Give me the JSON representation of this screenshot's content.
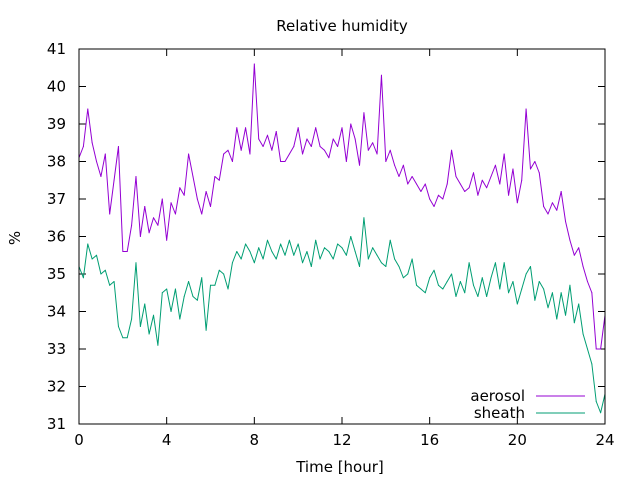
{
  "chart_data": {
    "type": "line",
    "title": "Relative humidity",
    "xlabel": "Time [hour]",
    "ylabel": "%",
    "xlim": [
      0,
      24
    ],
    "ylim": [
      31,
      41
    ],
    "xticks": [
      0,
      4,
      8,
      12,
      16,
      20,
      24
    ],
    "yticks": [
      31,
      32,
      33,
      34,
      35,
      36,
      37,
      38,
      39,
      40,
      41
    ],
    "grid": false,
    "legend_position": "bottom-right",
    "series": [
      {
        "name": "aerosol",
        "color": "#9400d3",
        "x": [
          0,
          0.2,
          0.4,
          0.6,
          0.8,
          1.0,
          1.2,
          1.4,
          1.6,
          1.8,
          2.0,
          2.2,
          2.4,
          2.6,
          2.8,
          3.0,
          3.2,
          3.4,
          3.6,
          3.8,
          4.0,
          4.2,
          4.4,
          4.6,
          4.8,
          5.0,
          5.2,
          5.4,
          5.6,
          5.8,
          6.0,
          6.2,
          6.4,
          6.6,
          6.8,
          7.0,
          7.2,
          7.4,
          7.6,
          7.8,
          8.0,
          8.2,
          8.4,
          8.6,
          8.8,
          9.0,
          9.2,
          9.4,
          9.6,
          9.8,
          10.0,
          10.2,
          10.4,
          10.6,
          10.8,
          11.0,
          11.2,
          11.4,
          11.6,
          11.8,
          12.0,
          12.2,
          12.4,
          12.6,
          12.8,
          13.0,
          13.2,
          13.4,
          13.6,
          13.8,
          14.0,
          14.2,
          14.4,
          14.6,
          14.8,
          15.0,
          15.2,
          15.4,
          15.6,
          15.8,
          16.0,
          16.2,
          16.4,
          16.6,
          16.8,
          17.0,
          17.2,
          17.4,
          17.6,
          17.8,
          18.0,
          18.2,
          18.4,
          18.6,
          18.8,
          19.0,
          19.2,
          19.4,
          19.6,
          19.8,
          20.0,
          20.2,
          20.4,
          20.6,
          20.8,
          21.0,
          21.2,
          21.4,
          21.6,
          21.8,
          22.0,
          22.2,
          22.4,
          22.6,
          22.8,
          23.0,
          23.2,
          23.4,
          23.6,
          23.8,
          24.0
        ],
        "values": [
          38.1,
          38.4,
          39.4,
          38.5,
          38.0,
          37.6,
          38.2,
          36.6,
          37.5,
          38.4,
          35.6,
          35.6,
          36.3,
          37.6,
          36.0,
          36.8,
          36.1,
          36.5,
          36.3,
          37.0,
          35.9,
          36.9,
          36.6,
          37.3,
          37.1,
          38.2,
          37.6,
          37.0,
          36.6,
          37.2,
          36.8,
          37.6,
          37.5,
          38.2,
          38.3,
          38.0,
          38.9,
          38.3,
          38.9,
          38.2,
          40.6,
          38.6,
          38.4,
          38.7,
          38.3,
          38.8,
          38.0,
          38.0,
          38.2,
          38.4,
          38.9,
          38.2,
          38.6,
          38.4,
          38.9,
          38.4,
          38.3,
          38.1,
          38.6,
          38.4,
          38.9,
          38.0,
          39.0,
          38.6,
          37.9,
          39.3,
          38.3,
          38.5,
          38.2,
          40.3,
          38.0,
          38.3,
          37.9,
          37.6,
          37.9,
          37.4,
          37.6,
          37.4,
          37.2,
          37.4,
          37.0,
          36.8,
          37.1,
          37.0,
          37.4,
          38.3,
          37.6,
          37.4,
          37.2,
          37.3,
          37.7,
          37.1,
          37.5,
          37.3,
          37.6,
          37.9,
          37.4,
          38.2,
          37.1,
          37.8,
          36.9,
          37.5,
          39.4,
          37.8,
          38.0,
          37.7,
          36.8,
          36.6,
          36.9,
          36.7,
          37.2,
          36.4,
          35.9,
          35.5,
          35.7,
          35.2,
          34.8,
          34.5,
          33.0,
          33.0,
          33.9
        ]
      },
      {
        "name": "sheath",
        "color": "#009e73",
        "x": [
          0,
          0.2,
          0.4,
          0.6,
          0.8,
          1.0,
          1.2,
          1.4,
          1.6,
          1.8,
          2.0,
          2.2,
          2.4,
          2.6,
          2.8,
          3.0,
          3.2,
          3.4,
          3.6,
          3.8,
          4.0,
          4.2,
          4.4,
          4.6,
          4.8,
          5.0,
          5.2,
          5.4,
          5.6,
          5.8,
          6.0,
          6.2,
          6.4,
          6.6,
          6.8,
          7.0,
          7.2,
          7.4,
          7.6,
          7.8,
          8.0,
          8.2,
          8.4,
          8.6,
          8.8,
          9.0,
          9.2,
          9.4,
          9.6,
          9.8,
          10.0,
          10.2,
          10.4,
          10.6,
          10.8,
          11.0,
          11.2,
          11.4,
          11.6,
          11.8,
          12.0,
          12.2,
          12.4,
          12.6,
          12.8,
          13.0,
          13.2,
          13.4,
          13.6,
          13.8,
          14.0,
          14.2,
          14.4,
          14.6,
          14.8,
          15.0,
          15.2,
          15.4,
          15.6,
          15.8,
          16.0,
          16.2,
          16.4,
          16.6,
          16.8,
          17.0,
          17.2,
          17.4,
          17.6,
          17.8,
          18.0,
          18.2,
          18.4,
          18.6,
          18.8,
          19.0,
          19.2,
          19.4,
          19.6,
          19.8,
          20.0,
          20.2,
          20.4,
          20.6,
          20.8,
          21.0,
          21.2,
          21.4,
          21.6,
          21.8,
          22.0,
          22.2,
          22.4,
          22.6,
          22.8,
          23.0,
          23.2,
          23.4,
          23.6,
          23.8,
          24.0
        ],
        "values": [
          35.2,
          34.9,
          35.8,
          35.4,
          35.5,
          35.0,
          35.1,
          34.7,
          34.8,
          33.6,
          33.3,
          33.3,
          33.8,
          35.3,
          33.6,
          34.2,
          33.4,
          33.9,
          33.1,
          34.5,
          34.6,
          34.0,
          34.6,
          33.8,
          34.4,
          34.8,
          34.4,
          34.3,
          34.9,
          33.5,
          34.7,
          34.7,
          35.1,
          35.0,
          34.6,
          35.3,
          35.6,
          35.4,
          35.8,
          35.6,
          35.3,
          35.7,
          35.4,
          35.9,
          35.6,
          35.4,
          35.8,
          35.5,
          35.9,
          35.5,
          35.8,
          35.3,
          35.6,
          35.2,
          35.9,
          35.4,
          35.7,
          35.6,
          35.4,
          35.8,
          35.7,
          35.5,
          36.0,
          35.6,
          35.2,
          36.5,
          35.4,
          35.7,
          35.5,
          35.3,
          35.2,
          35.9,
          35.4,
          35.2,
          34.9,
          35.0,
          35.4,
          34.7,
          34.6,
          34.5,
          34.9,
          35.1,
          34.7,
          34.6,
          34.8,
          35.0,
          34.4,
          34.8,
          34.5,
          35.3,
          34.7,
          34.4,
          34.9,
          34.4,
          34.9,
          35.3,
          34.6,
          35.3,
          34.5,
          34.8,
          34.2,
          34.6,
          35.0,
          35.2,
          34.3,
          34.8,
          34.6,
          34.1,
          34.5,
          33.8,
          34.5,
          33.9,
          34.7,
          33.7,
          34.2,
          33.4,
          33.0,
          32.6,
          31.6,
          31.3,
          31.8
        ]
      }
    ]
  }
}
